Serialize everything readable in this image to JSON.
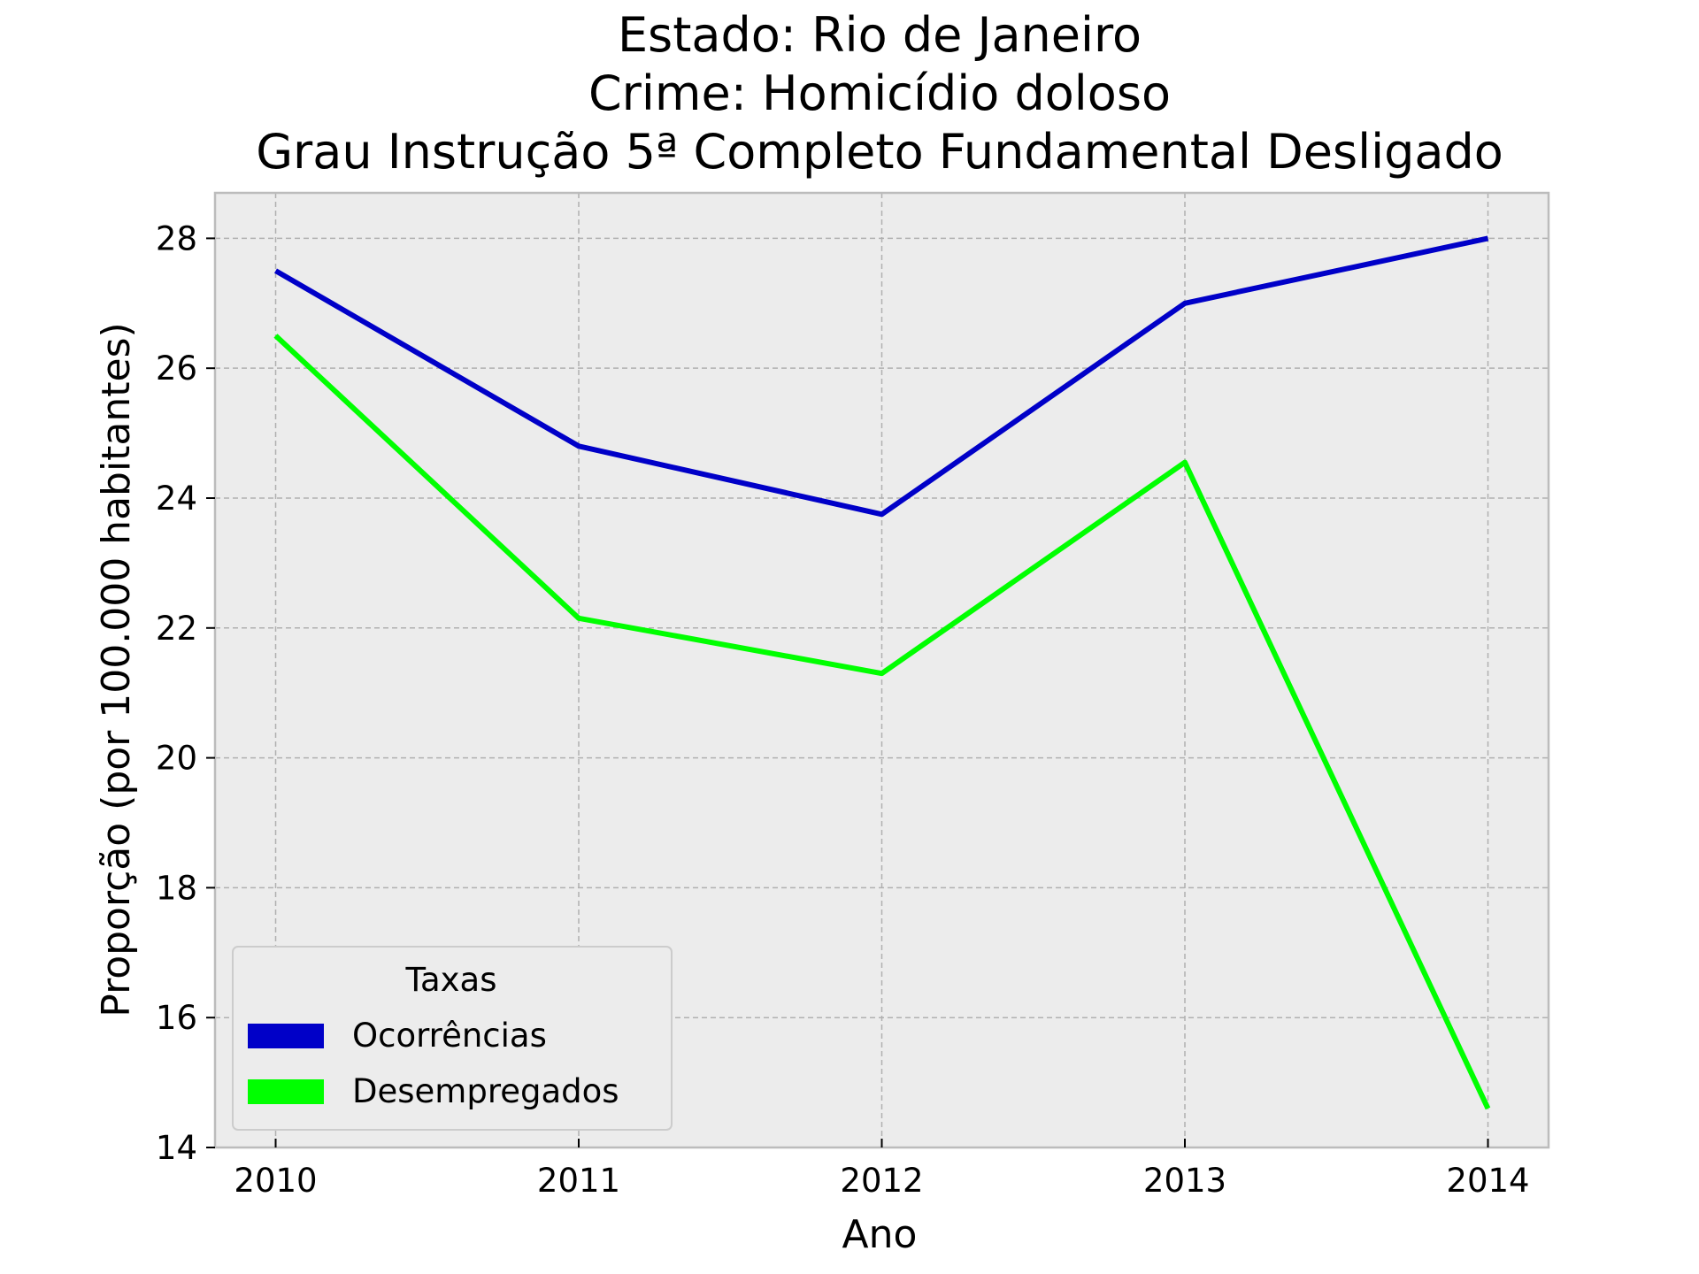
{
  "chart_data": {
    "type": "line",
    "title_lines": [
      "Estado: Rio de Janeiro",
      "Crime: Homicídio doloso",
      "Grau Instrução  5ª Completo Fundamental   Desligado"
    ],
    "xlabel": "Ano",
    "ylabel": "Proporção (por 100.000 habitantes)",
    "x": [
      2010,
      2011,
      2012,
      2013,
      2014
    ],
    "x_tick_labels": [
      "2010",
      "2011",
      "2012",
      "2013",
      "2014"
    ],
    "y_ticks": [
      14,
      16,
      18,
      20,
      22,
      24,
      26,
      28
    ],
    "y_tick_labels": [
      "14",
      "16",
      "18",
      "20",
      "22",
      "24",
      "26",
      "28"
    ],
    "xlim": [
      2009.8,
      2014.2
    ],
    "ylim": [
      14,
      28.7
    ],
    "grid": true,
    "background": "#ececec",
    "legend": {
      "title": "Taxas",
      "placement": "lower-left"
    },
    "series": [
      {
        "name": "Ocorrências",
        "color": "#0000c8",
        "values": [
          27.5,
          24.8,
          23.75,
          27.0,
          28.0
        ]
      },
      {
        "name": "Desempregados",
        "color": "#00ff00",
        "values": [
          26.5,
          22.15,
          21.3,
          24.55,
          14.6
        ]
      }
    ]
  }
}
